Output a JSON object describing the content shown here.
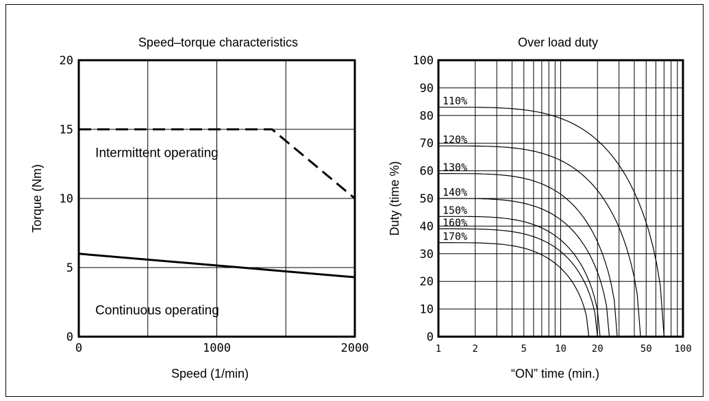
{
  "chart_data": [
    {
      "type": "line",
      "title": "Speed–torque characteristics",
      "xlabel": "Speed (1/min)",
      "ylabel": "Torque (Nm)",
      "xlim": [
        0,
        2000
      ],
      "ylim": [
        0,
        20
      ],
      "x_ticks": [
        "0",
        "1000",
        "2000"
      ],
      "y_ticks": [
        "0",
        "5",
        "10",
        "15",
        "20"
      ],
      "grid": true,
      "series": [
        {
          "style": "dashed",
          "x": [
            0,
            1400,
            2000
          ],
          "y": [
            15,
            15,
            10
          ]
        },
        {
          "style": "solid",
          "x": [
            0,
            2000
          ],
          "y": [
            6,
            4.3
          ]
        }
      ],
      "annotations": [
        {
          "text": "Intermittent operating",
          "x": 120,
          "y": 13
        },
        {
          "text": "Continuous operating",
          "x": 120,
          "y": 1.6
        }
      ]
    },
    {
      "type": "line",
      "title": "Over load duty",
      "xlabel": "“ON” time (min.)",
      "ylabel": "Duty (time %)",
      "xscale": "log",
      "xlim": [
        1,
        100
      ],
      "ylim": [
        0,
        100
      ],
      "x_ticks": [
        {
          "v": 1,
          "t": "1"
        },
        {
          "v": 2,
          "t": "2"
        },
        {
          "v": 5,
          "t": "5"
        },
        {
          "v": 10,
          "t": "10"
        },
        {
          "v": 20,
          "t": "20"
        },
        {
          "v": 50,
          "t": "50"
        },
        {
          "v": 100,
          "t": "100"
        }
      ],
      "y_ticks": [
        "0",
        "10",
        "20",
        "30",
        "40",
        "50",
        "60",
        "70",
        "80",
        "90",
        "100"
      ],
      "grid": true,
      "series": [
        {
          "name": "110%",
          "y0": 83,
          "x_end": 70
        },
        {
          "name": "120%",
          "y0": 69,
          "x_end": 45
        },
        {
          "name": "130%",
          "y0": 59,
          "x_end": 29
        },
        {
          "name": "140%",
          "y0": 50,
          "x_end": 25
        },
        {
          "name": "150%",
          "y0": 43.5,
          "x_end": 21
        },
        {
          "name": "160%",
          "y0": 39,
          "x_end": 20
        },
        {
          "name": "170%",
          "y0": 34,
          "x_end": 17
        }
      ]
    }
  ]
}
